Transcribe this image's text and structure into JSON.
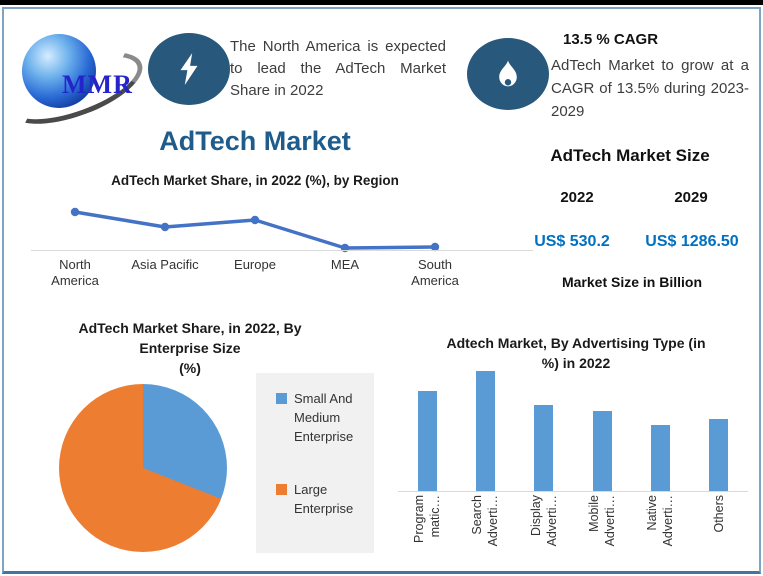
{
  "header": {
    "logo_text": "MMR",
    "callout1": {
      "icon": "lightning-icon",
      "text": "The North America is expected to lead the AdTech Market Share in 2022"
    },
    "callout2": {
      "icon": "flame-icon",
      "heading": "13.5 % CAGR",
      "text": "AdTech Market to grow at a CAGR of 13.5% during 2023-2029"
    }
  },
  "page_title": "AdTech Market",
  "market_size": {
    "title": "AdTech Market Size",
    "years": [
      "2022",
      "2029"
    ],
    "values": [
      "US$ 530.2",
      "US$ 1286.50"
    ],
    "footnote": "Market Size in Billion",
    "value_color": "#0070C0"
  },
  "colors": {
    "title_blue": "#1F5C8B",
    "icon_ellipse_blue": "#28587C",
    "frame_blue": "#7FA3C2",
    "axis_gray": "#D9D9D9",
    "legend_bg": "#F1F1F1"
  },
  "chart_data": [
    {
      "type": "line",
      "title": "AdTech Market Share, in 2022 (%), by Region",
      "categories": [
        "North America",
        "Asia Pacific",
        "Europe",
        "MEA",
        "South America"
      ],
      "category_lines": [
        [
          "North",
          "America"
        ],
        [
          "Asia Pacific"
        ],
        [
          "Europe"
        ],
        [
          "MEA"
        ],
        [
          "South",
          "America"
        ]
      ],
      "values": [
        38,
        23,
        30,
        2,
        3
      ],
      "ylim": [
        0,
        45
      ],
      "color": "#4472C4",
      "grid": false,
      "legend": "none"
    },
    {
      "type": "pie",
      "title": "AdTech Market Share, in 2022, By Enterprise Size (%)",
      "title_lines": [
        "AdTech Market Share, in 2022, By",
        "Enterprise Size",
        "(%)"
      ],
      "labels": [
        "Small And Medium Enterprise",
        "Large Enterprise"
      ],
      "values": [
        31,
        69
      ],
      "colors": [
        "#5B9BD5",
        "#ED7D31"
      ],
      "legend_position": "right",
      "start_angle": "top-clockwise"
    },
    {
      "type": "bar",
      "title": "Adtech Market, By Advertising Type (in %) in 2022",
      "title_lines": [
        "Adtech Market, By Advertising Type (in",
        "%) in 2022"
      ],
      "categories": [
        "Programmatic…",
        "Search Adverti…",
        "Display Adverti…",
        "Mobile Adverti…",
        "Native Adverti…",
        "Others"
      ],
      "label_lines": [
        [
          "Program",
          "matic…"
        ],
        [
          "Search",
          "Adverti…"
        ],
        [
          "Display",
          "Adverti…"
        ],
        [
          "Mobile",
          "Adverti…"
        ],
        [
          "Native",
          "Adverti…"
        ],
        [
          "Others"
        ]
      ],
      "values": [
        25,
        30,
        21.5,
        20,
        16.5,
        18
      ],
      "ylim": [
        0,
        30
      ],
      "color": "#5B9BD5",
      "xlabel": "",
      "ylabel": "",
      "grid": false
    }
  ]
}
